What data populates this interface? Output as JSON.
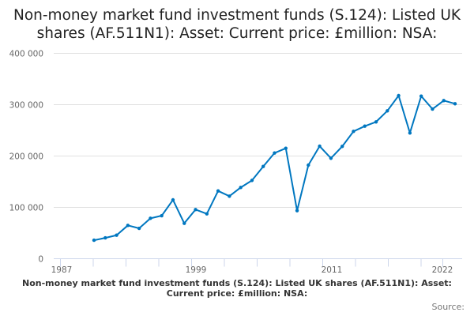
{
  "chart_data": {
    "type": "line",
    "title": "Non-money market fund investment funds (S.124): Listed UK shares (AF.511N1): Asset: Current price: £million: NSA:",
    "xlabel": "Non-money market fund investment funds (S.124): Listed UK shares (AF.511N1): Asset: Current price: £million: NSA:",
    "ylabel": "",
    "source_label": "Source:",
    "ylim": [
      0,
      400000
    ],
    "y_ticks": [
      0,
      100000,
      200000,
      300000,
      400000
    ],
    "y_tick_labels": [
      "0",
      "100 000",
      "200 000",
      "300 000",
      "400 000"
    ],
    "x_tick_labels": [
      "1987",
      "1999",
      "2011",
      "2022"
    ],
    "grid": true,
    "color": "#0077c0",
    "x": [
      1990,
      1991,
      1992,
      1993,
      1994,
      1995,
      1996,
      1997,
      1998,
      1999,
      2000,
      2001,
      2002,
      2003,
      2004,
      2005,
      2006,
      2007,
      2008,
      2009,
      2010,
      2011,
      2012,
      2013,
      2014,
      2015,
      2016,
      2017,
      2018,
      2019,
      2020,
      2021,
      2022
    ],
    "values": [
      36000,
      40600,
      45800,
      64900,
      59200,
      78700,
      83800,
      114600,
      69000,
      95700,
      87400,
      132000,
      121800,
      138700,
      152500,
      179700,
      205900,
      215100,
      93600,
      182300,
      219200,
      195700,
      218700,
      248000,
      258200,
      266500,
      288000,
      317700,
      244900,
      316700,
      291500,
      308000,
      301800
    ]
  }
}
